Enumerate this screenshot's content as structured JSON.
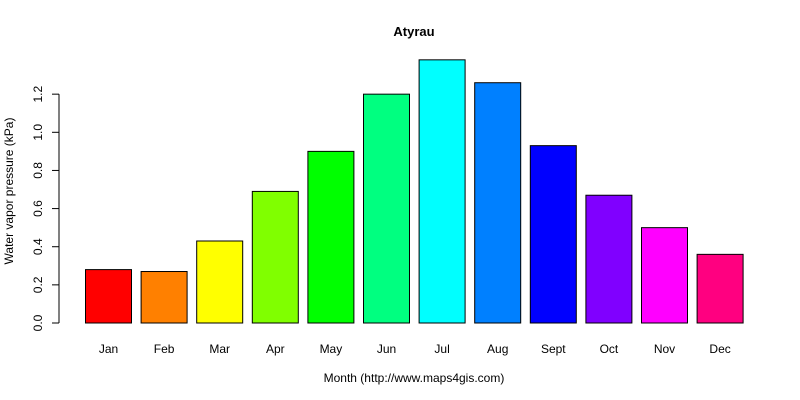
{
  "chart_data": {
    "type": "bar",
    "title": "Atyrau",
    "xlabel": "Month (http://www.maps4gis.com)",
    "ylabel": "Water vapor pressure (kPa)",
    "categories": [
      "Jan",
      "Feb",
      "Mar",
      "Apr",
      "May",
      "Jun",
      "Jul",
      "Aug",
      "Sept",
      "Oct",
      "Nov",
      "Dec"
    ],
    "values": [
      0.28,
      0.27,
      0.43,
      0.69,
      0.9,
      1.2,
      1.38,
      1.26,
      0.93,
      0.67,
      0.5,
      0.36
    ],
    "colors": [
      "#FF0000",
      "#FF8000",
      "#FFFF00",
      "#80FF00",
      "#00FF00",
      "#00FF80",
      "#00FFFF",
      "#0080FF",
      "#0000FF",
      "#8000FF",
      "#FF00FF",
      "#FF0080"
    ],
    "yticks": [
      "0.0",
      "0.2",
      "0.4",
      "0.6",
      "0.8",
      "1.0",
      "1.2"
    ],
    "ylim": [
      0,
      1.4
    ],
    "grid": false,
    "legend": "none"
  }
}
